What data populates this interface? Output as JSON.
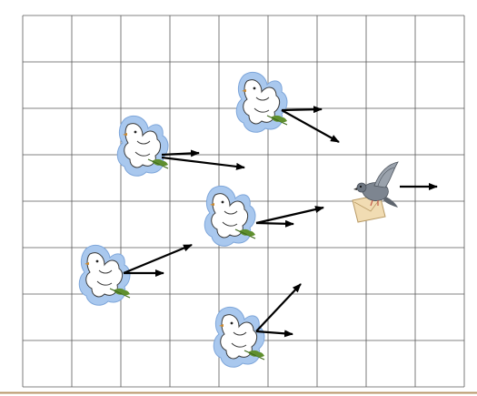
{
  "diagram": {
    "grid": {
      "columns": 9,
      "rows": 8,
      "line_color": "#5a5a5a"
    },
    "colors": {
      "arrow": "#000000",
      "dove_halo": "#a9c8ee",
      "leaf": "#5f8f2e",
      "pigeon": "#7d8590",
      "letter": "#f1dcb3",
      "bottom_rule": "#b8956a"
    },
    "icons": {
      "dove": "dove-with-olive-branch-icon",
      "pigeon": "carrier-pigeon-with-letter-icon"
    }
  }
}
